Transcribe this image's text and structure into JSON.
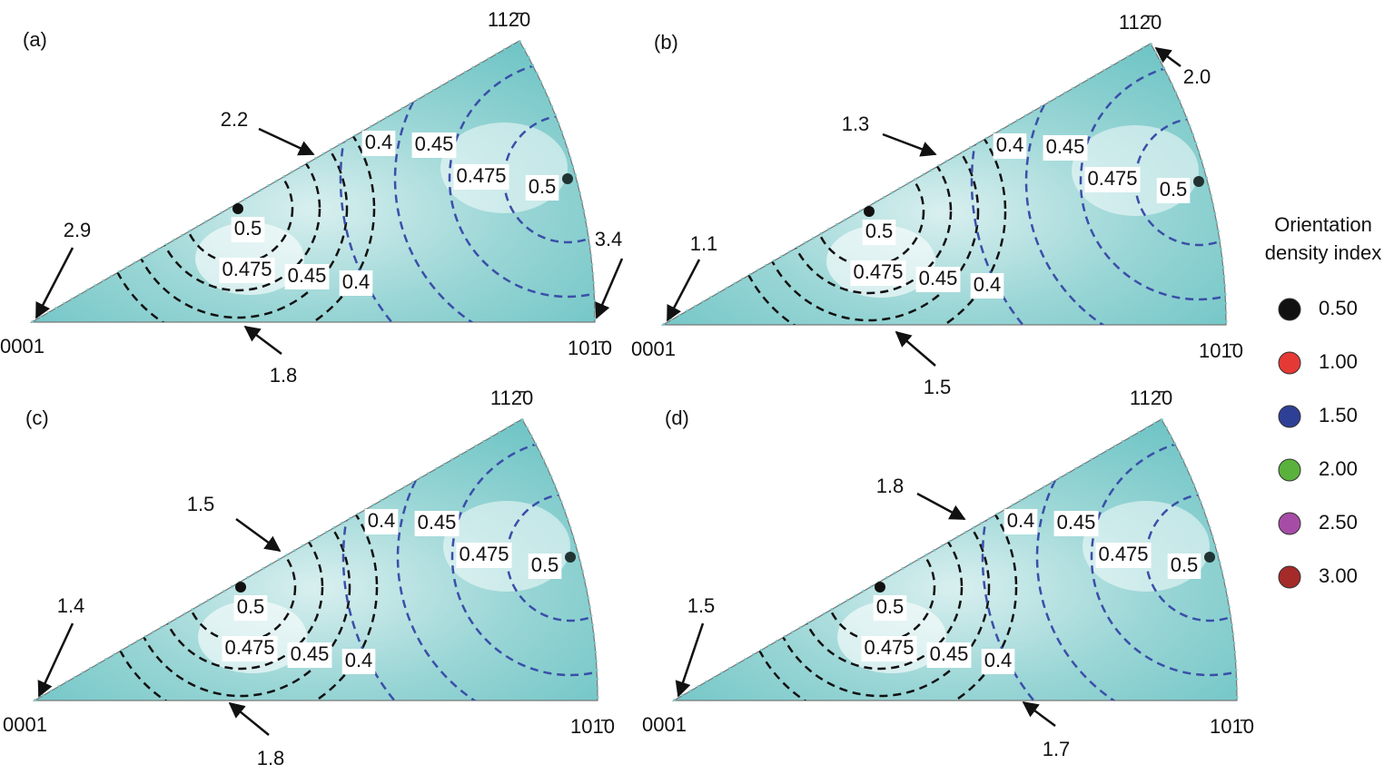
{
  "panels": [
    {
      "label": "(a)",
      "corners": [
        "0001",
        "101̄0",
        "112̄0"
      ],
      "annotations": [
        "2.9",
        "2.2",
        "1.8",
        "3.4"
      ],
      "contour_labels": [
        "0.5",
        "0.475",
        "0.45",
        "0.4",
        "0.4",
        "0.45",
        "0.475",
        "0.5"
      ]
    },
    {
      "label": "(b)",
      "corners": [
        "0001",
        "101̄0",
        "112̄0"
      ],
      "annotations": [
        "1.1",
        "1.3",
        "1.5",
        "2.0"
      ],
      "contour_labels": [
        "0.5",
        "0.475",
        "0.45",
        "0.4",
        "0.4",
        "0.45",
        "0.475",
        "0.5"
      ]
    },
    {
      "label": "(c)",
      "corners": [
        "0001",
        "101̄0",
        "112̄0"
      ],
      "annotations": [
        "1.4",
        "1.5",
        "1.8"
      ],
      "contour_labels": [
        "0.5",
        "0.475",
        "0.45",
        "0.4",
        "0.4",
        "0.45",
        "0.475",
        "0.5"
      ]
    },
    {
      "label": "(d)",
      "corners": [
        "0001",
        "101̄0",
        "112̄0"
      ],
      "annotations": [
        "1.5",
        "1.8",
        "1.7"
      ],
      "contour_labels": [
        "0.5",
        "0.475",
        "0.45",
        "0.4",
        "0.4",
        "0.45",
        "0.475",
        "0.5"
      ]
    }
  ],
  "legend": {
    "title": "Orientation density index",
    "entries": [
      {
        "label": "0.50",
        "color": "#111111"
      },
      {
        "label": "1.00",
        "color": "#e53935"
      },
      {
        "label": "1.50",
        "color": "#2e3f96"
      },
      {
        "label": "2.00",
        "color": "#5ab23c"
      },
      {
        "label": "2.50",
        "color": "#a64ca6"
      },
      {
        "label": "3.00",
        "color": "#a52a2a"
      }
    ]
  }
}
